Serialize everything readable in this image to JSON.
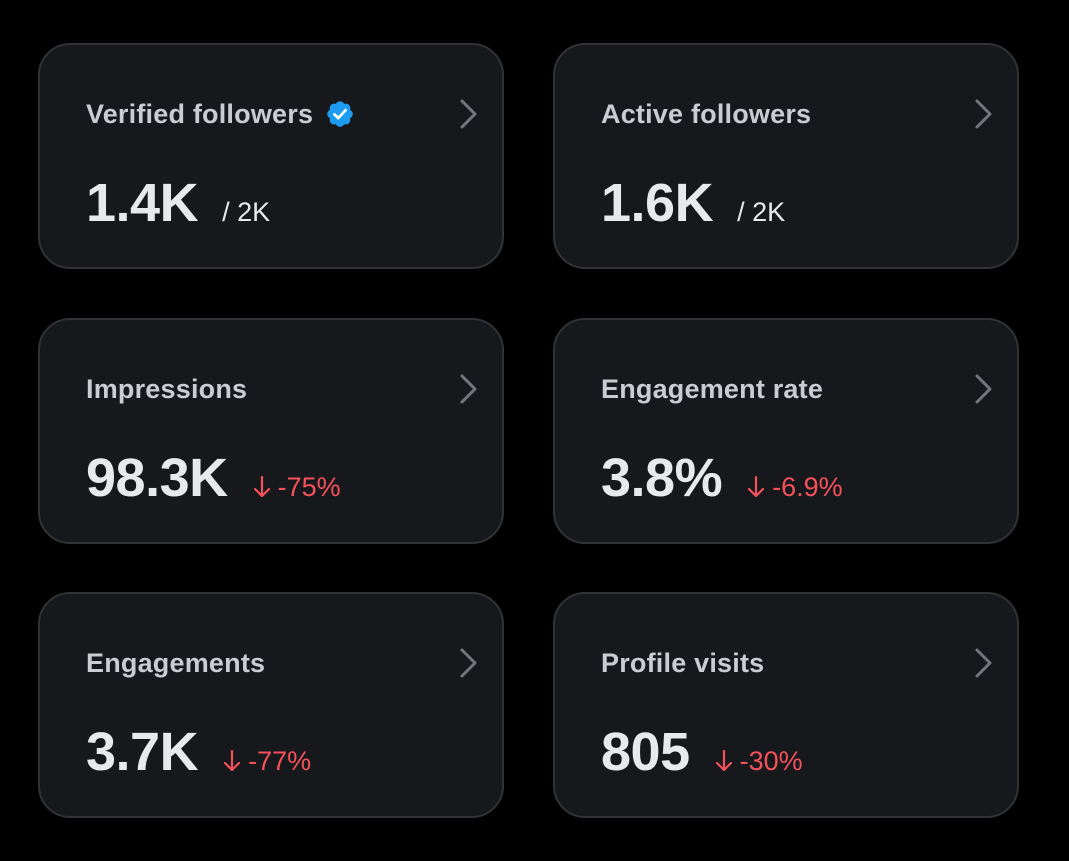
{
  "colors": {
    "background": "#000000",
    "card": "#16181c",
    "border": "#2f3336",
    "title": "#c9cdd1",
    "value": "#e7e9ea",
    "negative": "#f4515a",
    "verified": "#1d9bf0"
  },
  "cards": [
    {
      "title": "Verified followers",
      "icon": "verified-badge-icon",
      "value": "1.4K",
      "total": "/ 2K"
    },
    {
      "title": "Active followers",
      "value": "1.6K",
      "total": "/ 2K"
    },
    {
      "title": "Impressions",
      "value": "98.3K",
      "change": "-75%",
      "change_icon": "arrow-down-icon"
    },
    {
      "title": "Engagement rate",
      "value": "3.8%",
      "change": "-6.9%",
      "change_icon": "arrow-down-icon"
    },
    {
      "title": "Engagements",
      "value": "3.7K",
      "change": "-77%",
      "change_icon": "arrow-down-icon"
    },
    {
      "title": "Profile visits",
      "value": "805",
      "change": "-30%",
      "change_icon": "arrow-down-icon"
    }
  ]
}
